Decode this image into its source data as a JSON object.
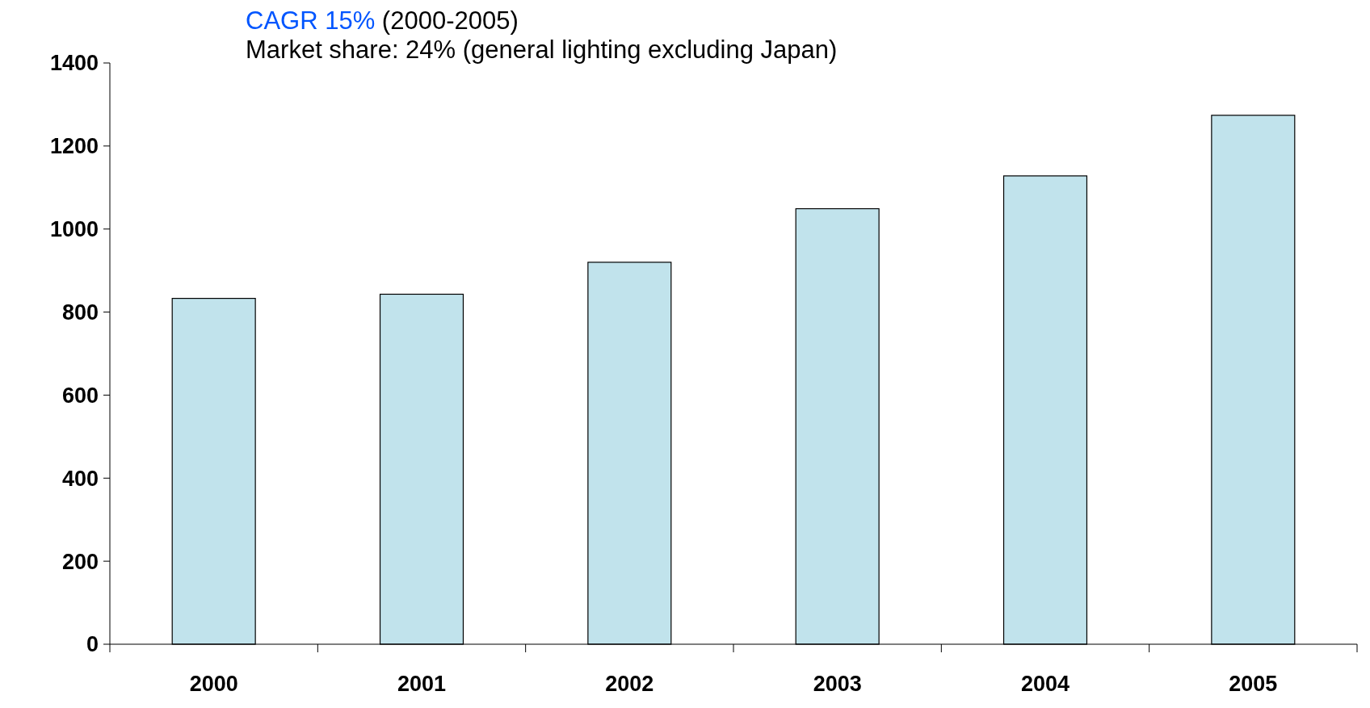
{
  "chart_data": {
    "type": "bar",
    "categories": [
      "2000",
      "2001",
      "2002",
      "2003",
      "2004",
      "2005"
    ],
    "values": [
      833,
      843,
      920,
      1049,
      1128,
      1274
    ],
    "color": "#c1e3ec",
    "ylim": [
      0,
      1400
    ],
    "yticks": [
      0,
      200,
      400,
      600,
      800,
      1000,
      1200,
      1400
    ],
    "grid": false,
    "annotations": [
      "CAGR 15%",
      "(2000-2005)",
      "Market share: 24% (general lighting excluding Japan)"
    ]
  }
}
